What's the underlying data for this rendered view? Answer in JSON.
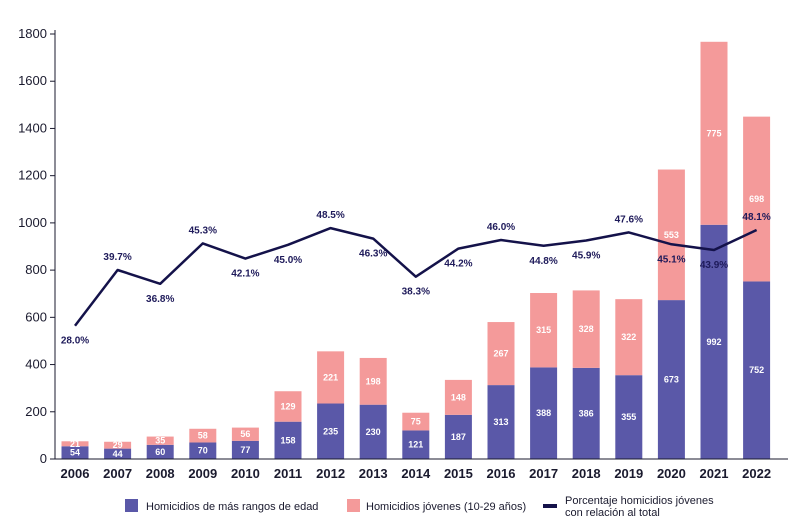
{
  "chart_data": {
    "type": "bar",
    "stacked": true,
    "categories": [
      "2006",
      "2007",
      "2008",
      "2009",
      "2010",
      "2011",
      "2012",
      "2013",
      "2014",
      "2015",
      "2016",
      "2017",
      "2018",
      "2019",
      "2020",
      "2021",
      "2022"
    ],
    "series": [
      {
        "name": "Homicidios de más rangos de edad",
        "color": "#5a58a8",
        "values": [
          54,
          44,
          60,
          70,
          77,
          158,
          235,
          230,
          121,
          187,
          313,
          388,
          386,
          355,
          673,
          992,
          752
        ]
      },
      {
        "name": "Homicidios jóvenes (10-29 años)",
        "color": "#f49a9a",
        "values": [
          21,
          29,
          35,
          58,
          56,
          129,
          221,
          198,
          75,
          148,
          267,
          315,
          328,
          322,
          553,
          775,
          698
        ]
      }
    ],
    "line_series": {
      "name_line1": "Porcentaje homicidios jóvenes",
      "name_line2": "con relación al total",
      "color": "#14124a",
      "values": [
        28.0,
        39.7,
        36.8,
        45.3,
        42.1,
        45.0,
        48.5,
        46.3,
        38.3,
        44.2,
        46.0,
        44.8,
        45.9,
        47.6,
        45.1,
        43.9,
        48.1
      ],
      "labels": [
        "28.0%",
        "39.7%",
        "36.8%",
        "45.3%",
        "42.1%",
        "45.0%",
        "48.5%",
        "46.3%",
        "38.3%",
        "44.2%",
        "46.0%",
        "44.8%",
        "45.9%",
        "47.6%",
        "45.1%",
        "43.9%",
        "48.1%"
      ]
    },
    "yticks": [
      "0",
      "200",
      "400",
      "600",
      "800",
      "1000",
      "1200",
      "1400",
      "1600",
      "1800"
    ],
    "ylim": [
      0,
      1800
    ],
    "title": "",
    "xlabel": "",
    "ylabel": "",
    "legend_position": "bottom"
  }
}
